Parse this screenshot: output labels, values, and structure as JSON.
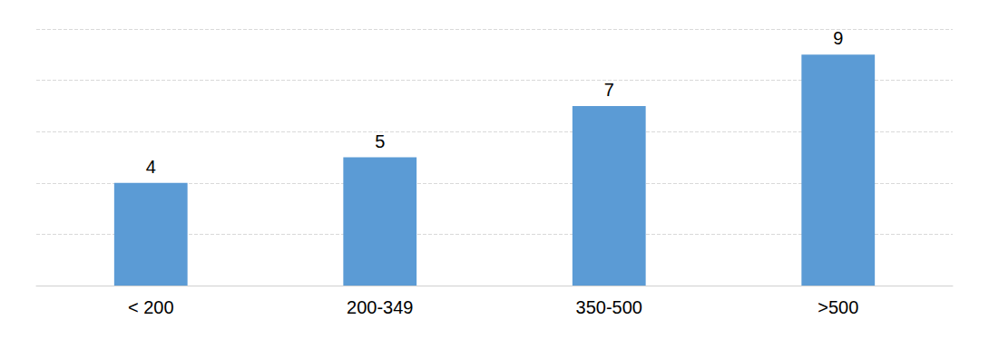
{
  "chart_data": {
    "type": "bar",
    "categories": [
      "< 200",
      "200-349",
      "350-500",
      ">500"
    ],
    "values": [
      4,
      5,
      7,
      9
    ],
    "color": "#5b9bd5",
    "ylim": [
      0,
      10
    ],
    "yticks": [
      0,
      2,
      4,
      6,
      8,
      10
    ],
    "grid": true,
    "data_labels": true,
    "tick_labels": "x"
  }
}
